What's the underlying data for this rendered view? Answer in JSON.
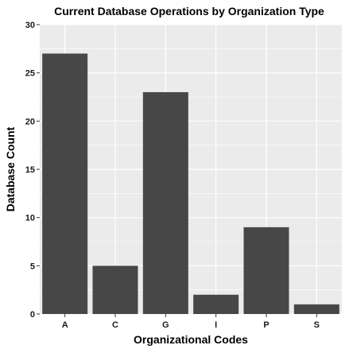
{
  "chart_data": {
    "type": "bar",
    "title": "Current Database Operations by Organization Type",
    "xlabel": "Organizational Codes",
    "ylabel": "Database Count",
    "categories": [
      "A",
      "C",
      "G",
      "I",
      "P",
      "S"
    ],
    "values": [
      27,
      5,
      23,
      2,
      9,
      1
    ],
    "ylim": [
      0,
      30
    ],
    "yticks": [
      0,
      5,
      10,
      15,
      20,
      25,
      30
    ],
    "grid": true,
    "legend": "none",
    "colors": {
      "bar": "#474747",
      "panel": "#ebebeb",
      "grid": "#ffffff"
    }
  }
}
